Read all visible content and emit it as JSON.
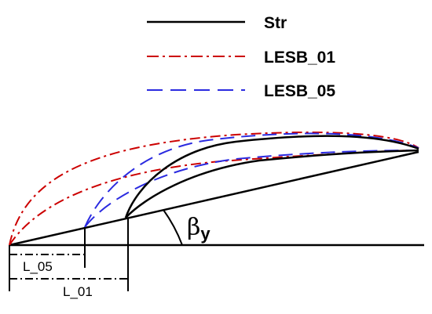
{
  "legend": {
    "items": [
      {
        "label": "Str",
        "color": "#000000",
        "style": "solid"
      },
      {
        "label": "LESB_01",
        "color": "#cc0000",
        "style": "dash-dot"
      },
      {
        "label": "LESB_05",
        "color": "#2a2ae0",
        "style": "dashed"
      }
    ]
  },
  "dimensions": {
    "short_label": "L_05",
    "long_label": "L_01"
  },
  "angle": {
    "symbol": "β",
    "subscript": "y"
  }
}
